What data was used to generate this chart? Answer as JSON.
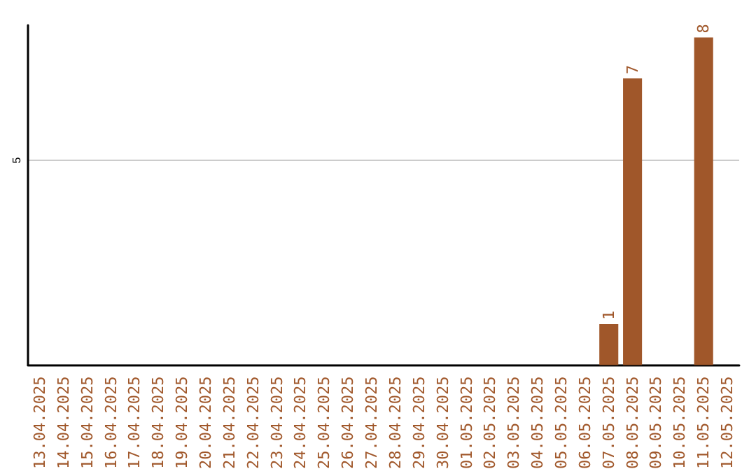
{
  "chart_data": {
    "type": "bar",
    "categories": [
      "13.04.2025",
      "14.04.2025",
      "15.04.2025",
      "16.04.2025",
      "17.04.2025",
      "18.04.2025",
      "19.04.2025",
      "20.04.2025",
      "21.04.2025",
      "22.04.2025",
      "23.04.2025",
      "24.04.2025",
      "25.04.2025",
      "26.04.2025",
      "27.04.2025",
      "28.04.2025",
      "29.04.2025",
      "30.04.2025",
      "01.05.2025",
      "02.05.2025",
      "03.05.2025",
      "04.05.2025",
      "05.05.2025",
      "06.05.2025",
      "07.05.2025",
      "08.05.2025",
      "09.05.2025",
      "10.05.2025",
      "11.05.2025",
      "12.05.2025"
    ],
    "values": [
      null,
      null,
      null,
      null,
      null,
      null,
      null,
      null,
      null,
      null,
      null,
      null,
      null,
      null,
      null,
      null,
      null,
      null,
      null,
      null,
      null,
      null,
      null,
      null,
      1,
      7,
      null,
      null,
      8,
      null
    ],
    "color": "#a0572a",
    "ylim": [
      0,
      8.3
    ],
    "yticks": [
      5
    ],
    "grid": "y",
    "data_labels": true
  }
}
